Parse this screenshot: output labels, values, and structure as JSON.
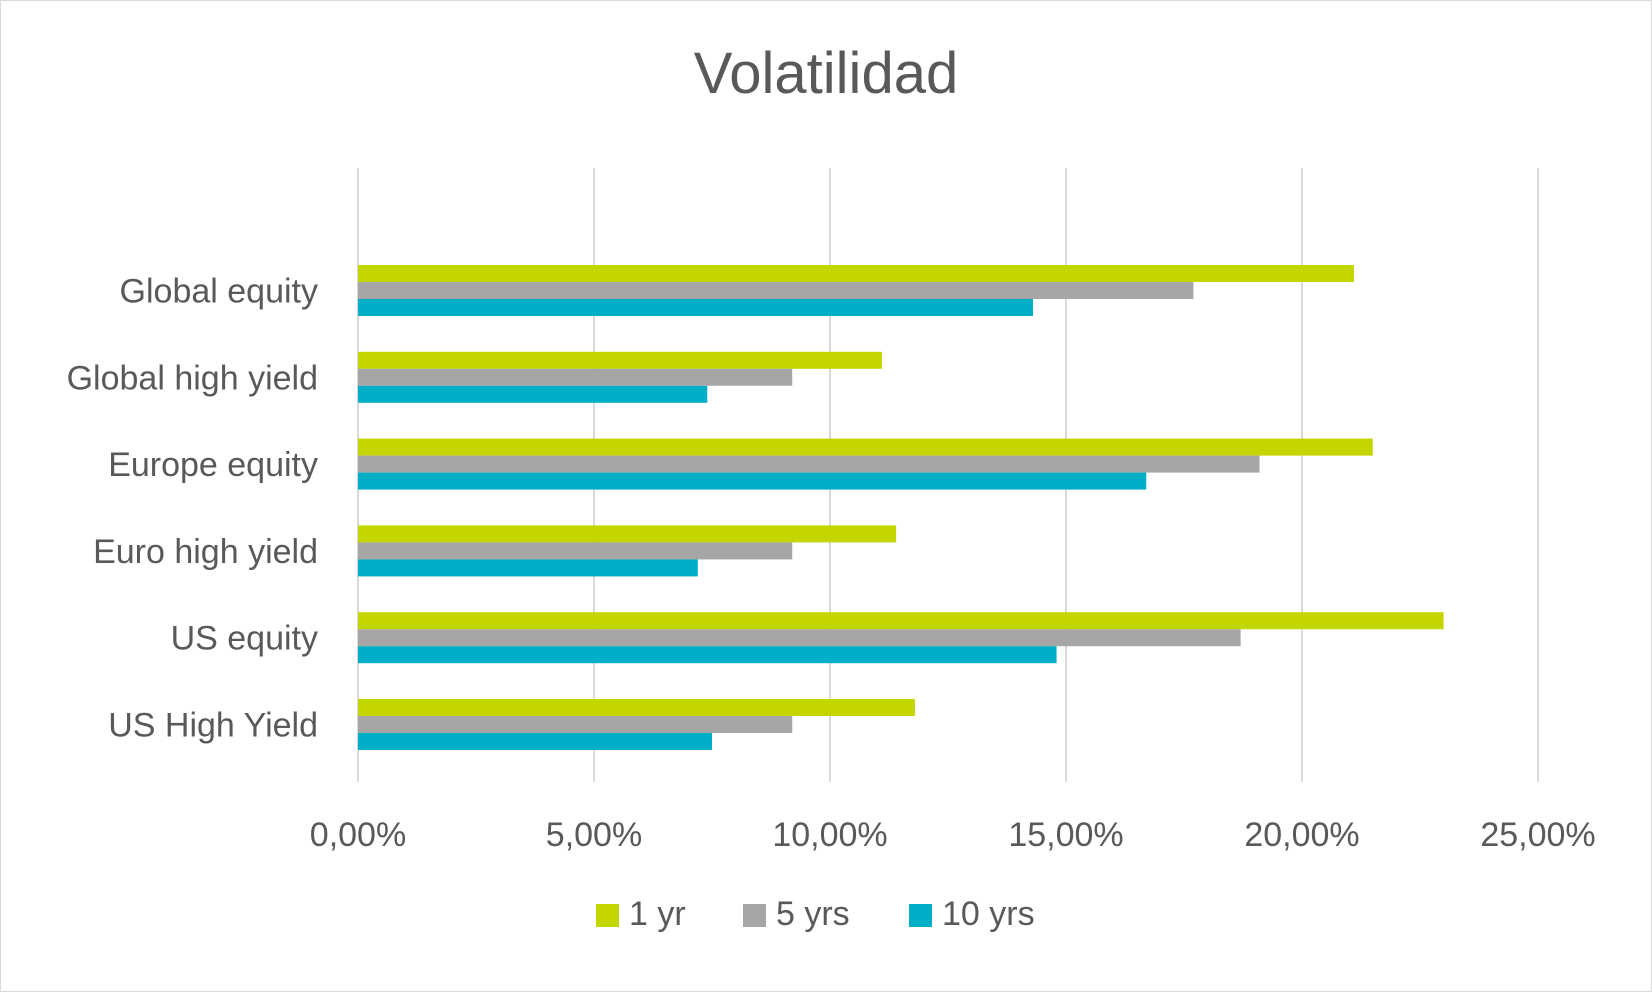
{
  "chart_data": {
    "type": "bar",
    "orientation": "horizontal",
    "title": "Volatilidad",
    "categories": [
      "Global equity",
      "Global high yield",
      "Europe equity",
      "Euro high yield",
      "US equity",
      "US High Yield"
    ],
    "series": [
      {
        "name": "1 yr",
        "color": "#c4d600",
        "values": [
          21.1,
          11.1,
          21.5,
          11.4,
          23.0,
          11.8
        ]
      },
      {
        "name": "5 yrs",
        "color": "#a6a6a6",
        "values": [
          17.7,
          9.2,
          19.1,
          9.2,
          18.7,
          9.2
        ]
      },
      {
        "name": "10 yrs",
        "color": "#00aec7",
        "values": [
          14.3,
          7.4,
          16.7,
          7.2,
          14.8,
          7.5
        ]
      }
    ],
    "xlim": [
      0,
      25
    ],
    "xticks": [
      "0,00%",
      "5,00%",
      "10,00%",
      "15,00%",
      "20,00%",
      "25,00%"
    ],
    "xlabel": "",
    "ylabel": "",
    "grid": true,
    "legend_position": "bottom"
  }
}
